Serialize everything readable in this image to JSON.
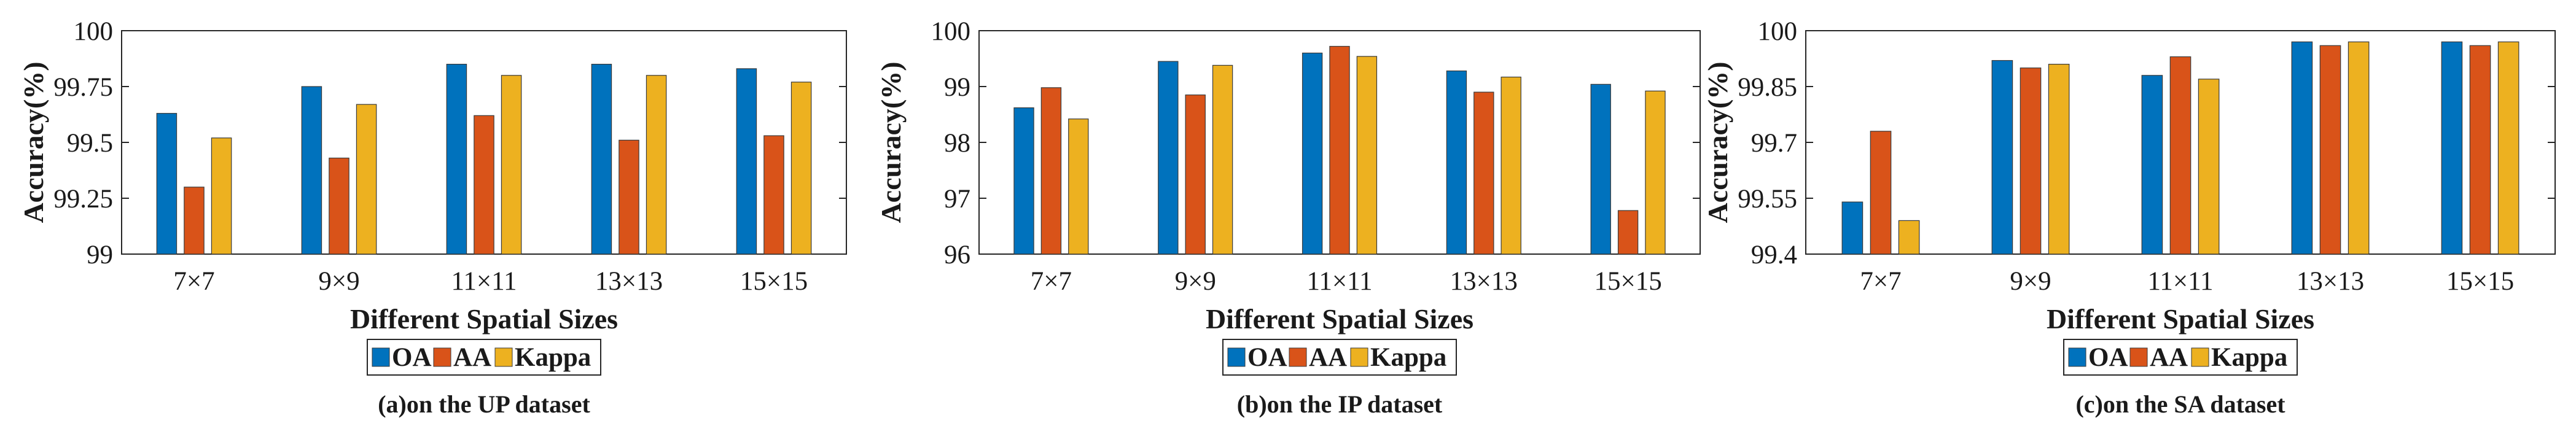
{
  "colors": {
    "OA": "#0072BD",
    "AA": "#D95319",
    "Kappa": "#EDB120",
    "axis": "#262626",
    "bar_edge": "#3a3a3a"
  },
  "chart_data": [
    {
      "type": "bar",
      "caption": "(a)on the UP dataset",
      "xlabel": "Different Spatial Sizes",
      "ylabel": "Accuracy(%)",
      "ylim": [
        99,
        100
      ],
      "yticks": [
        99,
        99.25,
        99.5,
        99.75,
        100
      ],
      "ytick_labels": [
        "99",
        "99.25",
        "99.5",
        "99.75",
        "100"
      ],
      "categories": [
        "7×7",
        "9×9",
        "11×11",
        "13×13",
        "15×15"
      ],
      "series": [
        {
          "name": "OA",
          "values": [
            99.63,
            99.75,
            99.85,
            99.85,
            99.83
          ]
        },
        {
          "name": "AA",
          "values": [
            99.3,
            99.43,
            99.62,
            99.51,
            99.53
          ]
        },
        {
          "name": "Kappa",
          "values": [
            99.52,
            99.67,
            99.8,
            99.8,
            99.77
          ]
        }
      ],
      "legend": [
        "OA",
        "AA",
        "Kappa"
      ]
    },
    {
      "type": "bar",
      "caption": "(b)on the IP dataset",
      "xlabel": "Different Spatial Sizes",
      "ylabel": "Accuracy(%)",
      "ylim": [
        96,
        100
      ],
      "yticks": [
        96,
        97,
        98,
        99,
        100
      ],
      "ytick_labels": [
        "96",
        "97",
        "98",
        "99",
        "100"
      ],
      "categories": [
        "7×7",
        "9×9",
        "11×11",
        "13×13",
        "15×15"
      ],
      "series": [
        {
          "name": "OA",
          "values": [
            98.62,
            99.45,
            99.6,
            99.28,
            99.04
          ]
        },
        {
          "name": "AA",
          "values": [
            98.98,
            98.85,
            99.72,
            98.9,
            96.78
          ]
        },
        {
          "name": "Kappa",
          "values": [
            98.42,
            99.38,
            99.54,
            99.17,
            98.92
          ]
        }
      ],
      "legend": [
        "OA",
        "AA",
        "Kappa"
      ]
    },
    {
      "type": "bar",
      "caption": "(c)on the SA dataset",
      "xlabel": "Different Spatial Sizes",
      "ylabel": "Accuracy(%)",
      "ylim": [
        99.4,
        100
      ],
      "yticks": [
        99.4,
        99.55,
        99.7,
        99.85,
        100
      ],
      "ytick_labels": [
        "99.4",
        "99.55",
        "99.7",
        "99.85",
        "100"
      ],
      "categories": [
        "7×7",
        "9×9",
        "11×11",
        "13×13",
        "15×15"
      ],
      "series": [
        {
          "name": "OA",
          "values": [
            99.54,
            99.92,
            99.88,
            99.97,
            99.97
          ]
        },
        {
          "name": "AA",
          "values": [
            99.73,
            99.9,
            99.93,
            99.96,
            99.96
          ]
        },
        {
          "name": "Kappa",
          "values": [
            99.49,
            99.91,
            99.87,
            99.97,
            99.97
          ]
        }
      ],
      "legend": [
        "OA",
        "AA",
        "Kappa"
      ]
    }
  ]
}
